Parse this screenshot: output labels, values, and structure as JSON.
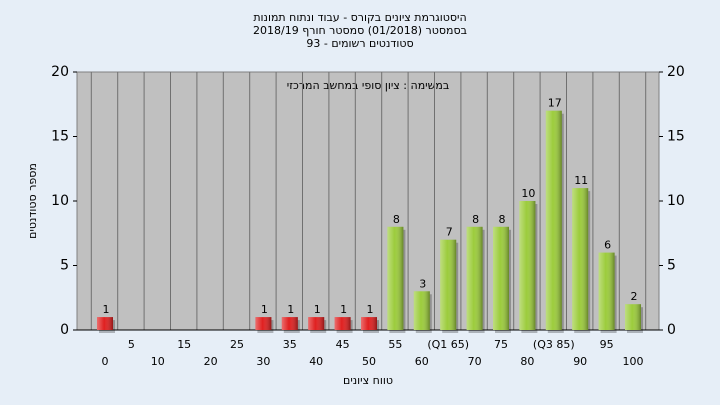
{
  "chart_data": {
    "type": "bar",
    "title": [
      "היסטוגרמת ציונים בקורס - עבוד ונתוח תמונות",
      "בסמסטר  (01/2018)  סמסטר חורף 2018/19",
      "סטודנטים רשומים - 93"
    ],
    "subtitle": "במשימה : ציון סופי במחשב המרכזי",
    "x_label": "טווח ציונים",
    "y_label": "מספר סטודנטים",
    "categories": [
      "0",
      "5",
      "10",
      "15",
      "20",
      "25",
      "30",
      "35",
      "40",
      "45",
      "50",
      "55",
      "60",
      "(Q1 65)",
      "70",
      "75",
      "80",
      "(Q3 85)",
      "90",
      "95",
      "100"
    ],
    "values": [
      1,
      0,
      0,
      0,
      0,
      0,
      1,
      1,
      1,
      1,
      1,
      8,
      3,
      7,
      8,
      8,
      10,
      17,
      11,
      6,
      2
    ],
    "colors": [
      "#e02020",
      "#e02020",
      "#e02020",
      "#e02020",
      "#e02020",
      "#e02020",
      "#e02020",
      "#e02020",
      "#e02020",
      "#e02020",
      "#e02020",
      "#9ccc3c",
      "#9ccc3c",
      "#9ccc3c",
      "#9ccc3c",
      "#9ccc3c",
      "#9ccc3c",
      "#9ccc3c",
      "#9ccc3c",
      "#9ccc3c",
      "#9ccc3c"
    ],
    "ylim": [
      0,
      20
    ],
    "yticks": [
      0,
      5,
      10,
      15,
      20
    ],
    "y2lim": [
      0,
      20
    ],
    "y2ticks": [
      0,
      5,
      10,
      15,
      20
    ],
    "grid": true
  }
}
